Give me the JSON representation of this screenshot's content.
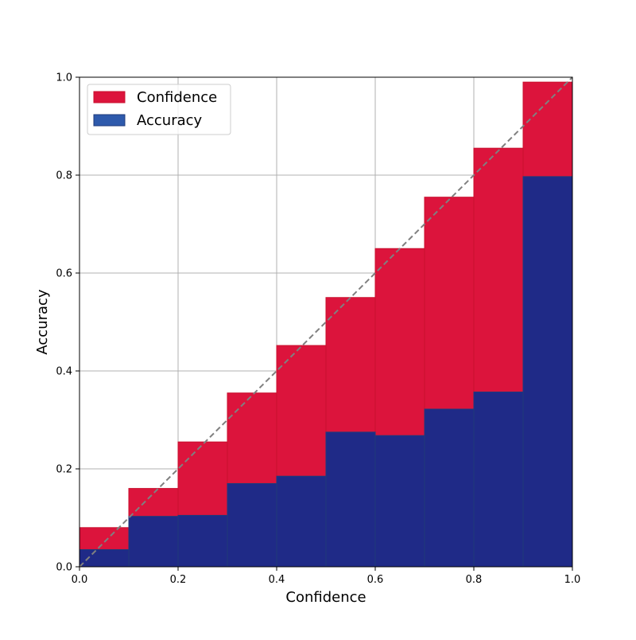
{
  "chart_data": {
    "type": "bar",
    "title": "",
    "xlabel": "Confidence",
    "ylabel": "Accuracy",
    "xlim": [
      0,
      1
    ],
    "ylim": [
      0,
      1
    ],
    "bin_width": 0.1,
    "xticks": [
      "0.0",
      "0.2",
      "0.4",
      "0.6",
      "0.8",
      "1.0"
    ],
    "yticks": [
      "0.0",
      "0.2",
      "0.4",
      "0.6",
      "0.8",
      "1.0"
    ],
    "grid": true,
    "legend_position": "top-left",
    "bin_edges": [
      0.0,
      0.1,
      0.2,
      0.3,
      0.4,
      0.5,
      0.6,
      0.7,
      0.8,
      0.9
    ],
    "series": [
      {
        "name": "Confidence",
        "color": "#dc143c",
        "values": [
          0.08,
          0.16,
          0.255,
          0.355,
          0.452,
          0.55,
          0.65,
          0.755,
          0.855,
          0.99
        ]
      },
      {
        "name": "Accuracy",
        "color": "#1f2a87",
        "values": [
          0.035,
          0.103,
          0.105,
          0.17,
          0.185,
          0.275,
          0.268,
          0.322,
          0.357,
          0.797
        ]
      }
    ],
    "reference_line": {
      "from": [
        0,
        0
      ],
      "to": [
        1,
        1
      ],
      "style": "dashed",
      "color": "#808080"
    }
  }
}
